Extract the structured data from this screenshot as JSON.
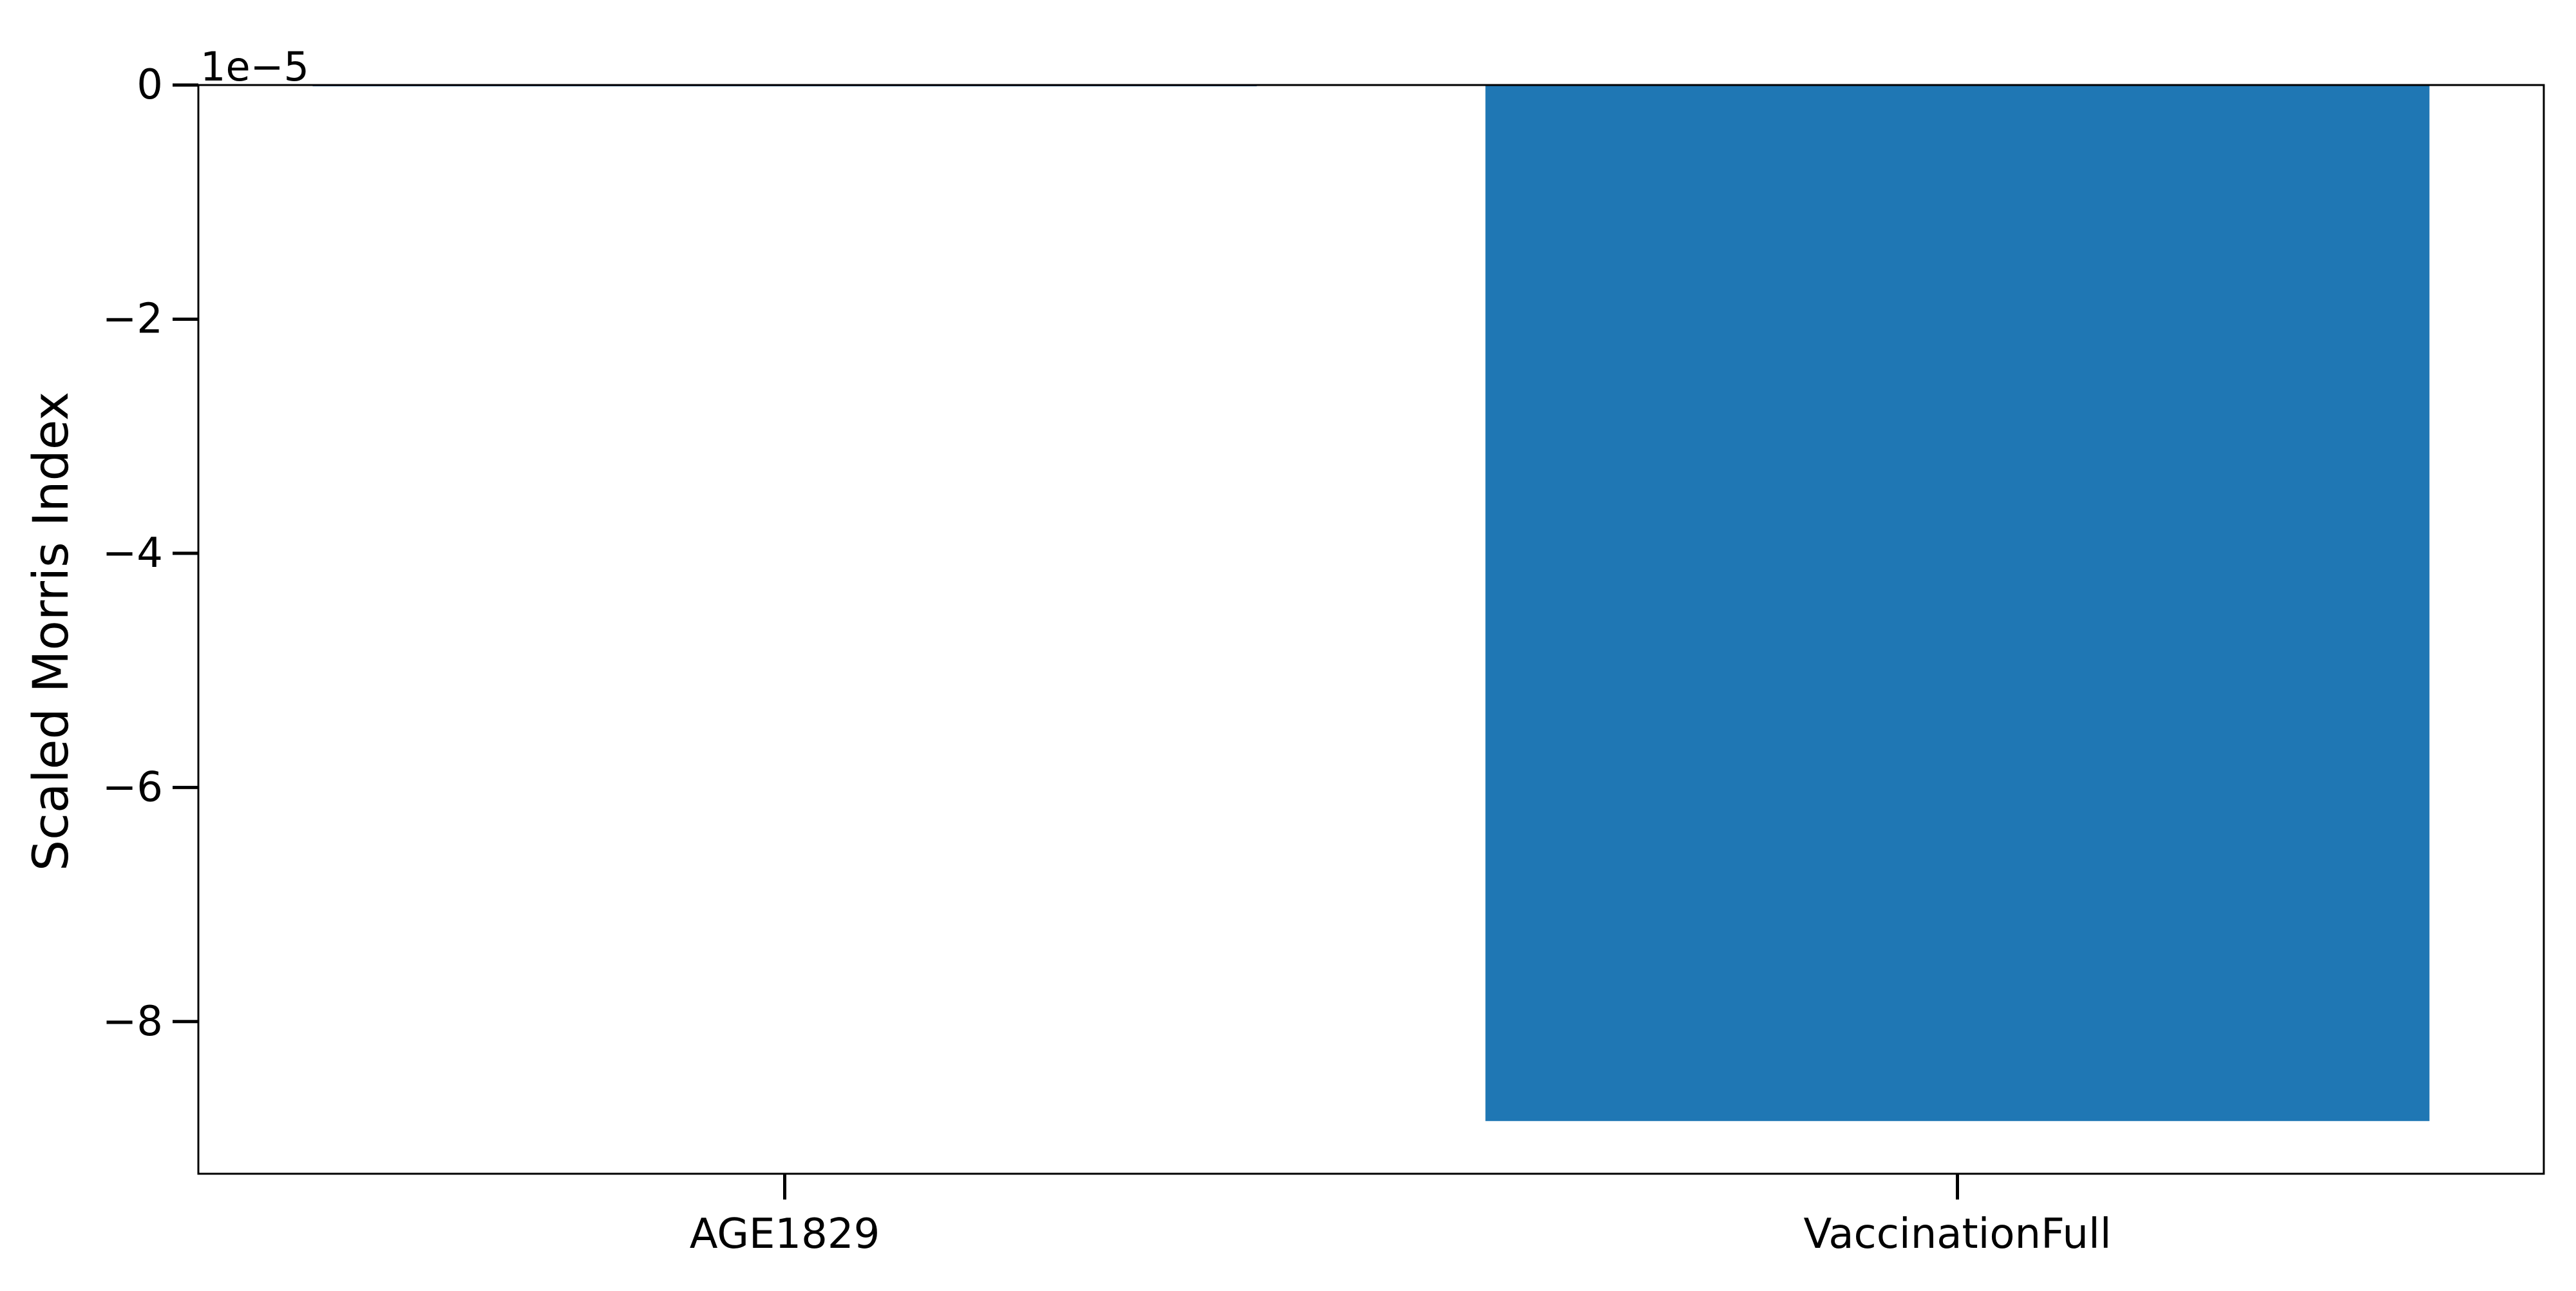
{
  "chart_data": {
    "type": "bar",
    "categories": [
      "AGE1829",
      "VaccinationFull"
    ],
    "values": [
      -1.1e-07,
      -8.85e-05
    ],
    "title": "",
    "xlabel": "",
    "ylabel": "Scaled Morris Index",
    "ylim": [
      -9.3e-05,
      0
    ],
    "yticks": [
      0,
      -2,
      -4,
      -6,
      -8
    ],
    "ytick_labels": [
      "0",
      "−2",
      "−4",
      "−6",
      "−8"
    ],
    "offset_label": "1e−5",
    "grid": false,
    "bar_color": "#1f77b4"
  }
}
